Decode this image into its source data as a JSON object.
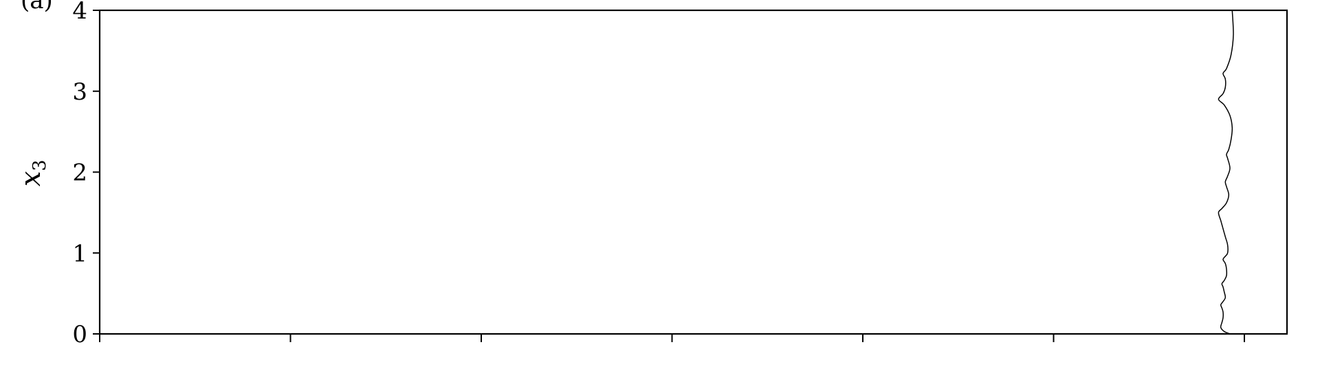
{
  "panel_label": "(a)",
  "chart_data": {
    "type": "line",
    "title": "",
    "ylabel": "x",
    "ylabel_subscript": "3",
    "xlabel": "",
    "ylim": [
      0,
      4
    ],
    "yticks": [
      "0",
      "1",
      "2",
      "3",
      "4"
    ],
    "xtick_count": 7,
    "grid": false,
    "series": [
      {
        "points": [
          [
            0.99,
            0.0
          ],
          [
            0.985,
            0.03
          ],
          [
            0.982,
            0.08
          ],
          [
            0.983,
            0.14
          ],
          [
            0.984,
            0.2
          ],
          [
            0.984,
            0.27
          ],
          [
            0.983,
            0.32
          ],
          [
            0.982,
            0.36
          ],
          [
            0.984,
            0.4
          ],
          [
            0.986,
            0.45
          ],
          [
            0.985,
            0.52
          ],
          [
            0.984,
            0.58
          ],
          [
            0.983,
            0.62
          ],
          [
            0.985,
            0.66
          ],
          [
            0.987,
            0.72
          ],
          [
            0.987,
            0.8
          ],
          [
            0.986,
            0.87
          ],
          [
            0.984,
            0.92
          ],
          [
            0.986,
            0.96
          ],
          [
            0.988,
            1.0
          ],
          [
            0.988,
            1.1
          ],
          [
            0.986,
            1.2
          ],
          [
            0.984,
            1.3
          ],
          [
            0.982,
            1.4
          ],
          [
            0.98,
            1.5
          ],
          [
            0.983,
            1.55
          ],
          [
            0.987,
            1.62
          ],
          [
            0.989,
            1.72
          ],
          [
            0.987,
            1.82
          ],
          [
            0.986,
            1.88
          ],
          [
            0.988,
            1.95
          ],
          [
            0.99,
            2.05
          ],
          [
            0.988,
            2.17
          ],
          [
            0.987,
            2.22
          ],
          [
            0.989,
            2.28
          ],
          [
            0.991,
            2.4
          ],
          [
            0.992,
            2.55
          ],
          [
            0.99,
            2.7
          ],
          [
            0.985,
            2.83
          ],
          [
            0.98,
            2.9
          ],
          [
            0.984,
            2.97
          ],
          [
            0.986,
            3.05
          ],
          [
            0.986,
            3.15
          ],
          [
            0.984,
            3.22
          ],
          [
            0.987,
            3.28
          ],
          [
            0.991,
            3.45
          ],
          [
            0.993,
            3.7
          ],
          [
            0.992,
            4.0
          ]
        ]
      }
    ]
  }
}
